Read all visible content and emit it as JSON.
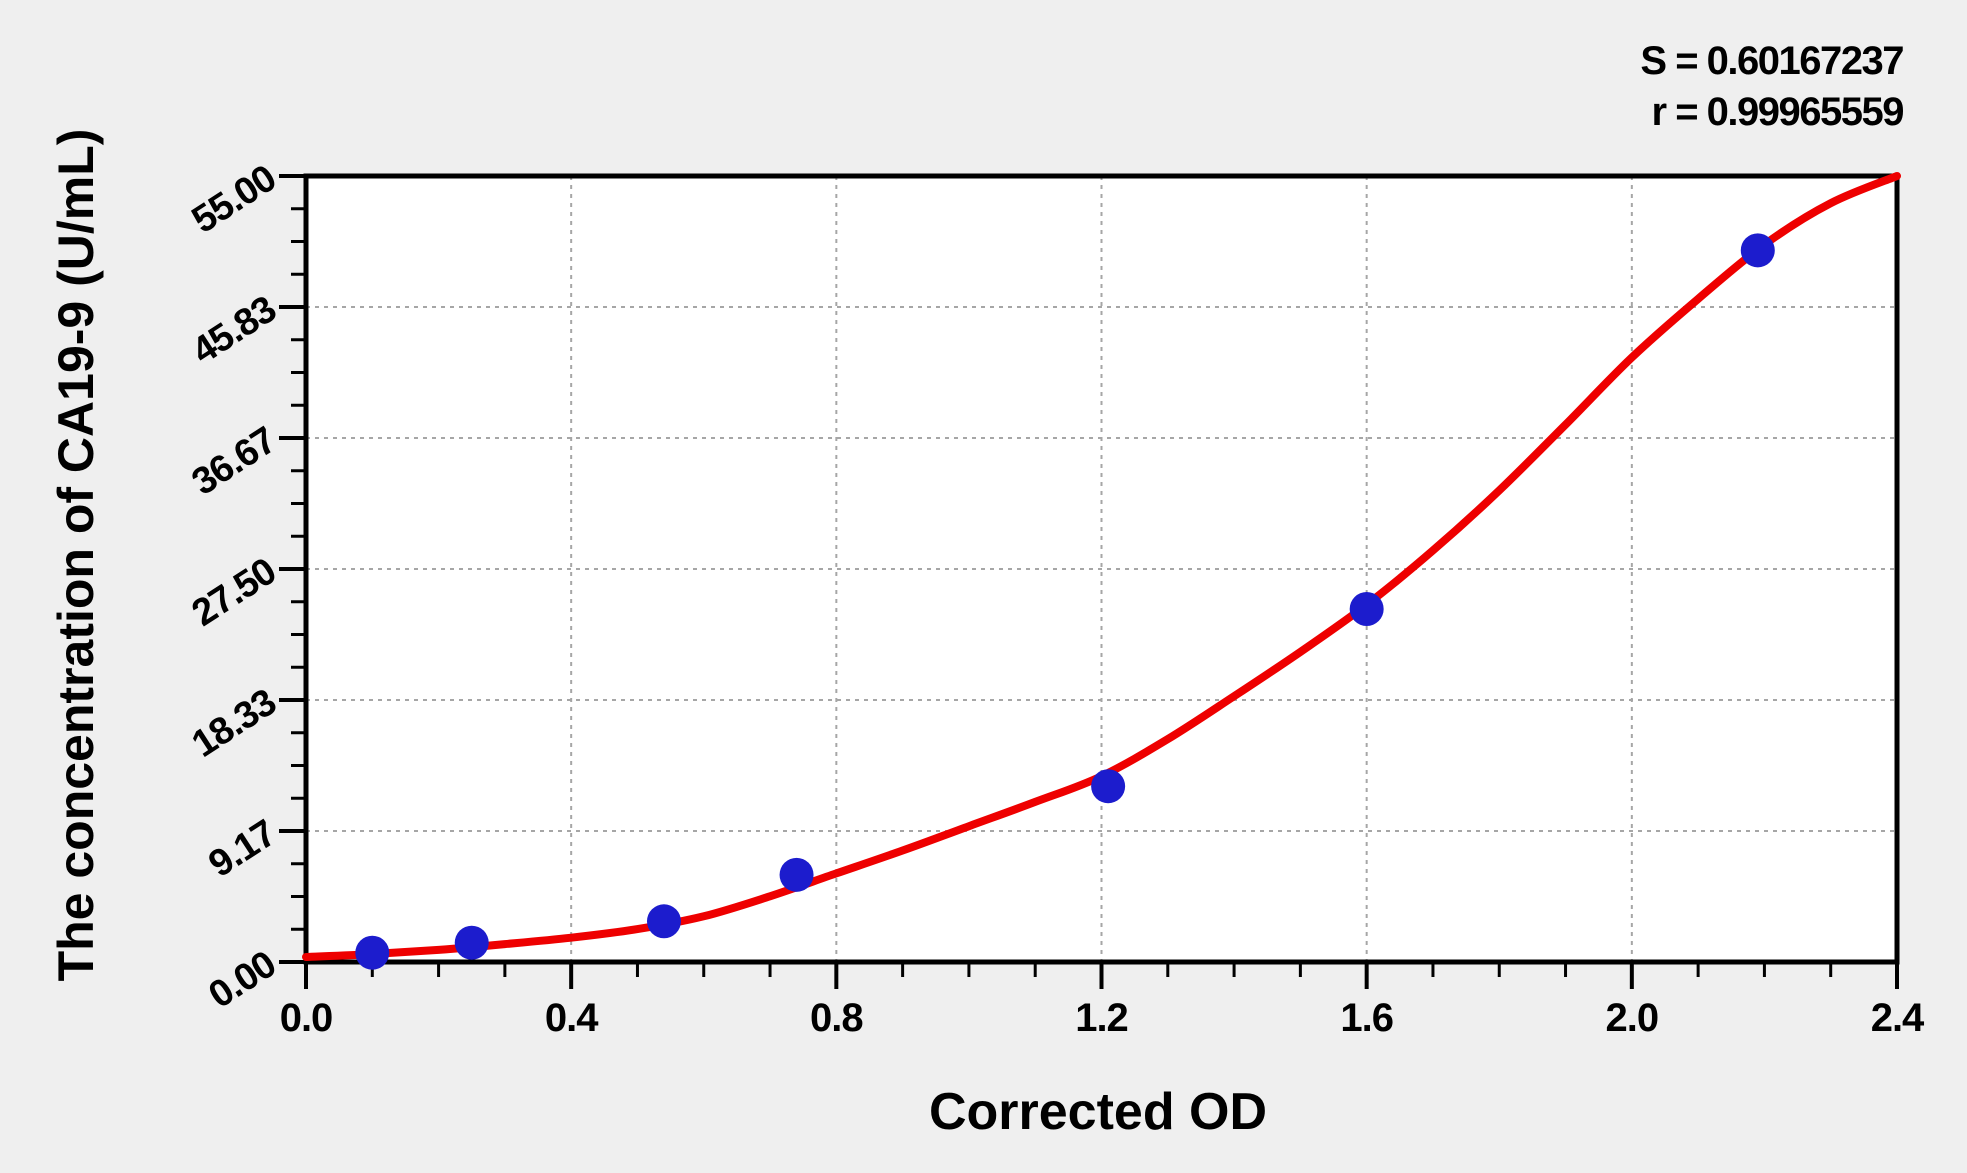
{
  "stats": {
    "s_line": "S = 0.60167237",
    "r_line": "r = 0.99965559"
  },
  "chart_data": {
    "type": "scatter",
    "title": "",
    "xlabel": "Corrected OD",
    "ylabel": "The concentration of CA19-9 (U/mL)",
    "xlim": [
      0,
      2.4
    ],
    "ylim": [
      0,
      55
    ],
    "grid": {
      "style": "dashed",
      "color": "#a6a6a6",
      "at": "major-ticks"
    },
    "legend": "none",
    "background": "#efefef",
    "plot_background": "#ffffff",
    "x_ticks": [
      {
        "v": 0.0,
        "label": "0.0"
      },
      {
        "v": 0.4,
        "label": "0.4"
      },
      {
        "v": 0.8,
        "label": "0.8"
      },
      {
        "v": 1.2,
        "label": "1.2"
      },
      {
        "v": 1.6,
        "label": "1.6"
      },
      {
        "v": 2.0,
        "label": "2.0"
      },
      {
        "v": 2.4,
        "label": "2.4"
      }
    ],
    "y_ticks": [
      {
        "v": 0.0,
        "label": "0.00"
      },
      {
        "v": 9.1667,
        "label": "9.17"
      },
      {
        "v": 18.3333,
        "label": "18.33"
      },
      {
        "v": 27.5,
        "label": "27.50"
      },
      {
        "v": 36.6667,
        "label": "36.67"
      },
      {
        "v": 45.8333,
        "label": "45.83"
      },
      {
        "v": 55.0,
        "label": "55.00"
      }
    ],
    "x_minor_step": 0.1,
    "y_minor_step": 2.291667,
    "series": [
      {
        "name": "standard-points",
        "type": "scatter",
        "marker": "circle",
        "color": "#1c1ccd",
        "points": [
          [
            0.1,
            0.65
          ],
          [
            0.25,
            1.35
          ],
          [
            0.54,
            2.85
          ],
          [
            0.74,
            6.1
          ],
          [
            1.21,
            12.3
          ],
          [
            1.6,
            24.7
          ],
          [
            2.19,
            49.8
          ]
        ]
      },
      {
        "name": "fitted-curve",
        "type": "line",
        "color": "#ee0000",
        "points": [
          [
            0.0,
            0.35
          ],
          [
            0.1,
            0.55
          ],
          [
            0.2,
            0.85
          ],
          [
            0.3,
            1.25
          ],
          [
            0.4,
            1.7
          ],
          [
            0.5,
            2.3
          ],
          [
            0.6,
            3.2
          ],
          [
            0.7,
            4.6
          ],
          [
            0.8,
            6.2
          ],
          [
            0.9,
            7.8
          ],
          [
            1.0,
            9.5
          ],
          [
            1.1,
            11.2
          ],
          [
            1.2,
            13.0
          ],
          [
            1.3,
            15.6
          ],
          [
            1.4,
            18.6
          ],
          [
            1.5,
            21.7
          ],
          [
            1.6,
            25.0
          ],
          [
            1.7,
            28.8
          ],
          [
            1.8,
            33.0
          ],
          [
            1.9,
            37.6
          ],
          [
            2.0,
            42.3
          ],
          [
            2.1,
            46.4
          ],
          [
            2.2,
            50.2
          ],
          [
            2.3,
            53.1
          ],
          [
            2.4,
            55.0
          ]
        ]
      }
    ],
    "annotations": [
      "S = 0.60167237",
      "r = 0.99965559"
    ]
  }
}
